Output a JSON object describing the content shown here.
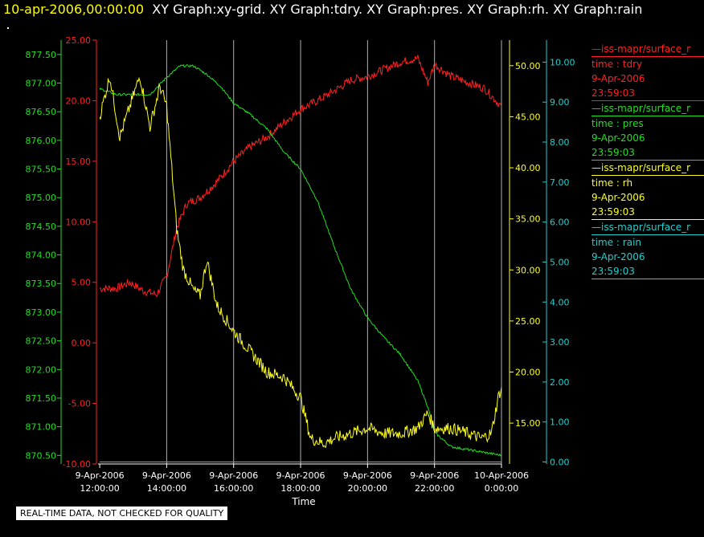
{
  "header": {
    "date": "10-apr-2006,00:00:00",
    "graphs": "XY Graph:xy-grid.  XY Graph:tdry.  XY Graph:pres.  XY Graph:rh.  XY Graph:rain"
  },
  "legend": [
    {
      "source": "—iss-mapr/surface_r",
      "var": "time : tdry",
      "date": "9-Apr-2006",
      "time": "23:59:03",
      "color": "#ff2020"
    },
    {
      "source": "—iss-mapr/surface_r",
      "var": "time : pres",
      "date": "9-Apr-2006",
      "time": "23:59:03",
      "color": "#20e020"
    },
    {
      "source": "—iss-mapr/surface_r",
      "var": "time : rh",
      "date": "9-Apr-2006",
      "time": "23:59:03",
      "color": "#ffff20"
    },
    {
      "source": "—iss-mapr/surface_r",
      "var": "time : rain",
      "date": "9-Apr-2006",
      "time": "23:59:03",
      "color": "#20d0d0"
    }
  ],
  "notice": "REAL-TIME DATA, NOT CHECKED FOR QUALITY",
  "colors": {
    "tdry": "#ff2020",
    "pres": "#20e020",
    "rh": "#ffff20",
    "rain": "#20d0d0",
    "grid": "#b0b0b0"
  },
  "chart_data": {
    "type": "line",
    "xlabel": "Time",
    "x_ticks": [
      [
        "9-Apr-2006",
        "12:00:00"
      ],
      [
        "9-Apr-2006",
        "14:00:00"
      ],
      [
        "9-Apr-2006",
        "16:00:00"
      ],
      [
        "9-Apr-2006",
        "18:00:00"
      ],
      [
        "9-Apr-2006",
        "20:00:00"
      ],
      [
        "9-Apr-2006",
        "22:00:00"
      ],
      [
        "10-Apr-2006",
        "0:00:00"
      ]
    ],
    "xlim_hours": [
      11.95,
      24.0
    ],
    "grid": true,
    "axes": {
      "pres": {
        "ylim": [
          870.35,
          877.75
        ],
        "ticks": [
          "870.50",
          "871.00",
          "871.50",
          "872.00",
          "872.50",
          "873.00",
          "873.50",
          "874.00",
          "874.50",
          "875.00",
          "875.50",
          "876.00",
          "876.50",
          "877.00",
          "877.50"
        ]
      },
      "tdry": {
        "ylim": [
          -10.0,
          25.0
        ],
        "ticks": [
          "-10.00",
          "-5.00",
          "0.00",
          "5.00",
          "10.00",
          "15.00",
          "20.00",
          "25.00"
        ]
      },
      "rh": {
        "ylim": [
          11.0,
          52.5
        ],
        "ticks": [
          "15.00",
          "20.00",
          "25.00",
          "30.00",
          "35.00",
          "40.00",
          "45.00",
          "50.00"
        ]
      },
      "rain": {
        "ylim": [
          -0.05,
          10.55
        ],
        "ticks": [
          "0.00",
          "1.00",
          "2.00",
          "3.00",
          "4.00",
          "5.00",
          "6.00",
          "7.00",
          "8.00",
          "9.00",
          "10.00"
        ]
      }
    },
    "series": [
      {
        "name": "time : tdry",
        "x": [
          12.0,
          12.5,
          12.9,
          13.3,
          13.7,
          14.0,
          14.3,
          14.6,
          15.0,
          15.5,
          16.0,
          16.5,
          17.0,
          17.5,
          18.0,
          18.5,
          19.0,
          19.5,
          20.0,
          20.5,
          21.0,
          21.5,
          21.8,
          22.0,
          22.5,
          23.0,
          23.5,
          24.0
        ],
        "y": [
          4.5,
          4.5,
          5.0,
          4.3,
          4.0,
          5.5,
          9.5,
          11.5,
          12.0,
          13.3,
          15.0,
          16.2,
          17.0,
          18.2,
          19.3,
          20.0,
          20.8,
          21.7,
          22.0,
          22.6,
          23.2,
          23.5,
          21.5,
          23.0,
          22.0,
          21.5,
          21.0,
          19.5
        ]
      },
      {
        "name": "time : pres",
        "x": [
          12.0,
          12.5,
          13.0,
          13.5,
          14.0,
          14.4,
          14.8,
          15.2,
          15.6,
          16.0,
          16.5,
          17.0,
          17.5,
          18.0,
          18.5,
          19.0,
          19.5,
          20.0,
          20.5,
          21.0,
          21.5,
          21.8,
          22.0,
          22.2,
          22.5,
          23.0,
          23.5,
          24.0
        ],
        "y": [
          876.9,
          876.8,
          876.8,
          876.8,
          877.1,
          877.3,
          877.3,
          877.15,
          876.95,
          876.65,
          876.45,
          876.2,
          875.8,
          875.5,
          874.95,
          874.15,
          873.4,
          872.9,
          872.55,
          872.25,
          871.8,
          871.35,
          870.9,
          870.8,
          870.65,
          870.6,
          870.55,
          870.5
        ]
      },
      {
        "name": "time : rh",
        "x": [
          12.0,
          12.3,
          12.6,
          12.9,
          13.2,
          13.5,
          13.8,
          14.0,
          14.1,
          14.3,
          14.5,
          14.8,
          15.0,
          15.2,
          15.4,
          15.5,
          15.7,
          16.0,
          16.5,
          17.0,
          17.5,
          18.0,
          18.3,
          18.7,
          19.0,
          19.5,
          20.0,
          20.5,
          21.0,
          21.5,
          21.8,
          22.0,
          22.5,
          23.0,
          23.4,
          23.7,
          23.9,
          24.0
        ],
        "y": [
          45.0,
          49.0,
          43.0,
          46.0,
          49.0,
          44.0,
          48.0,
          46.0,
          42.0,
          34.0,
          30.0,
          28.0,
          27.5,
          31.0,
          28.0,
          26.5,
          25.5,
          24.0,
          22.0,
          20.0,
          19.5,
          17.5,
          13.5,
          13.0,
          13.5,
          14.0,
          14.5,
          14.0,
          14.0,
          14.5,
          16.0,
          14.5,
          14.5,
          14.0,
          13.5,
          14.0,
          17.5,
          18.5
        ]
      },
      {
        "name": "time : rain",
        "x": [
          12.0,
          24.0
        ],
        "y": [
          0.0,
          0.0
        ]
      }
    ]
  }
}
